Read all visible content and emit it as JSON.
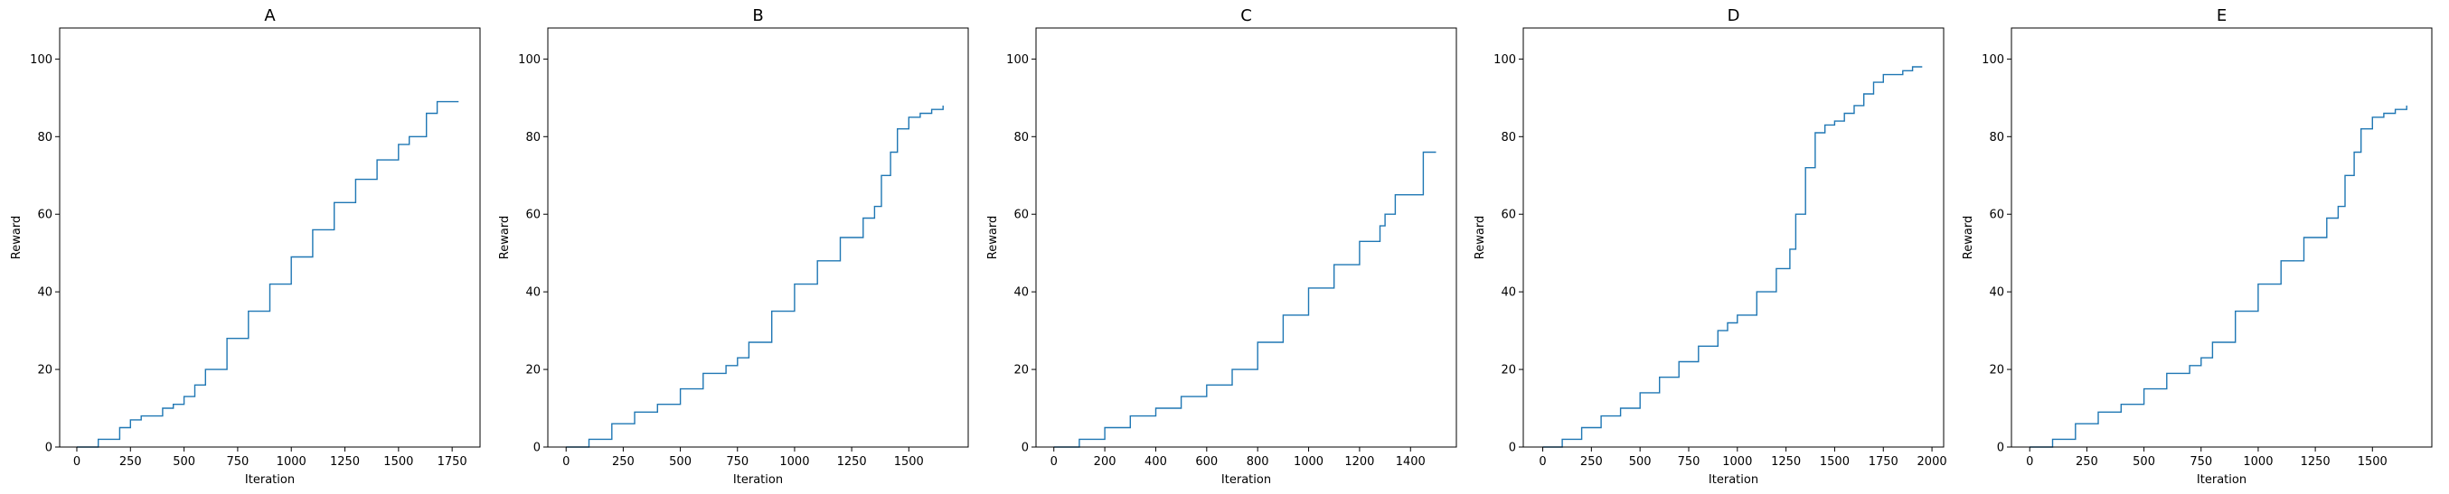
{
  "chart_data": [
    {
      "type": "line",
      "title": "A",
      "xlabel": "Iteration",
      "ylabel": "Reward",
      "xlim": [
        -80,
        1880
      ],
      "ylim": [
        0,
        108
      ],
      "xticks": [
        0,
        250,
        500,
        750,
        1000,
        1250,
        1500,
        1750
      ],
      "yticks": [
        0,
        20,
        40,
        60,
        80,
        100
      ],
      "grid": false,
      "color": "#1f77b4",
      "step": true,
      "x": [
        0,
        100,
        200,
        250,
        300,
        400,
        450,
        500,
        550,
        600,
        700,
        800,
        900,
        1000,
        1100,
        1200,
        1300,
        1400,
        1500,
        1550,
        1600,
        1630,
        1650,
        1680,
        1700,
        1780
      ],
      "y": [
        0,
        2,
        5,
        7,
        8,
        10,
        11,
        13,
        16,
        20,
        28,
        35,
        42,
        49,
        56,
        63,
        69,
        74,
        78,
        80,
        80,
        86,
        86,
        89,
        89,
        89
      ]
    },
    {
      "type": "line",
      "title": "B",
      "xlabel": "Iteration",
      "ylabel": "Reward",
      "xlim": [
        -80,
        1760
      ],
      "ylim": [
        0,
        108
      ],
      "xticks": [
        0,
        250,
        500,
        750,
        1000,
        1250,
        1500
      ],
      "yticks": [
        0,
        20,
        40,
        60,
        80,
        100
      ],
      "grid": false,
      "color": "#1f77b4",
      "step": true,
      "x": [
        0,
        100,
        200,
        300,
        400,
        500,
        600,
        700,
        750,
        800,
        900,
        1000,
        1100,
        1200,
        1300,
        1350,
        1380,
        1420,
        1450,
        1500,
        1550,
        1600,
        1650
      ],
      "y": [
        0,
        2,
        6,
        9,
        11,
        15,
        19,
        21,
        23,
        27,
        35,
        42,
        48,
        54,
        59,
        62,
        70,
        76,
        82,
        85,
        86,
        87,
        88
      ]
    },
    {
      "type": "line",
      "title": "C",
      "xlabel": "Iteration",
      "ylabel": "Reward",
      "xlim": [
        -70,
        1580
      ],
      "ylim": [
        0,
        108
      ],
      "xticks": [
        0,
        200,
        400,
        600,
        800,
        1000,
        1200,
        1400
      ],
      "yticks": [
        0,
        20,
        40,
        60,
        80,
        100
      ],
      "grid": false,
      "color": "#1f77b4",
      "step": true,
      "x": [
        0,
        100,
        200,
        300,
        400,
        500,
        600,
        700,
        800,
        900,
        1000,
        1100,
        1200,
        1280,
        1300,
        1340,
        1400,
        1450,
        1500
      ],
      "y": [
        0,
        2,
        5,
        8,
        10,
        13,
        16,
        20,
        27,
        34,
        41,
        47,
        53,
        57,
        60,
        65,
        65,
        76,
        76
      ]
    },
    {
      "type": "line",
      "title": "D",
      "xlabel": "Iteration",
      "ylabel": "Reward",
      "xlim": [
        -100,
        2060
      ],
      "ylim": [
        0,
        108
      ],
      "xticks": [
        0,
        250,
        500,
        750,
        1000,
        1250,
        1500,
        1750,
        2000
      ],
      "yticks": [
        0,
        20,
        40,
        60,
        80,
        100
      ],
      "grid": false,
      "color": "#1f77b4",
      "step": true,
      "x": [
        0,
        100,
        200,
        300,
        400,
        500,
        600,
        700,
        800,
        900,
        950,
        1000,
        1100,
        1200,
        1270,
        1300,
        1350,
        1400,
        1450,
        1500,
        1550,
        1600,
        1650,
        1700,
        1750,
        1800,
        1850,
        1900,
        1950
      ],
      "y": [
        0,
        2,
        5,
        8,
        10,
        14,
        18,
        22,
        26,
        30,
        32,
        34,
        40,
        46,
        51,
        60,
        72,
        81,
        83,
        84,
        86,
        88,
        91,
        94,
        96,
        96,
        97,
        98,
        98
      ]
    },
    {
      "type": "line",
      "title": "E",
      "xlabel": "Iteration",
      "ylabel": "Reward",
      "xlim": [
        -80,
        1760
      ],
      "ylim": [
        0,
        108
      ],
      "xticks": [
        0,
        250,
        500,
        750,
        1000,
        1250,
        1500
      ],
      "yticks": [
        0,
        20,
        40,
        60,
        80,
        100
      ],
      "grid": false,
      "color": "#1f77b4",
      "step": true,
      "x": [
        0,
        100,
        200,
        300,
        400,
        500,
        600,
        700,
        750,
        800,
        900,
        1000,
        1100,
        1200,
        1300,
        1350,
        1380,
        1420,
        1450,
        1500,
        1550,
        1600,
        1650
      ],
      "y": [
        0,
        2,
        6,
        9,
        11,
        15,
        19,
        21,
        23,
        27,
        35,
        42,
        48,
        54,
        59,
        62,
        70,
        76,
        82,
        85,
        86,
        87,
        88
      ]
    }
  ]
}
